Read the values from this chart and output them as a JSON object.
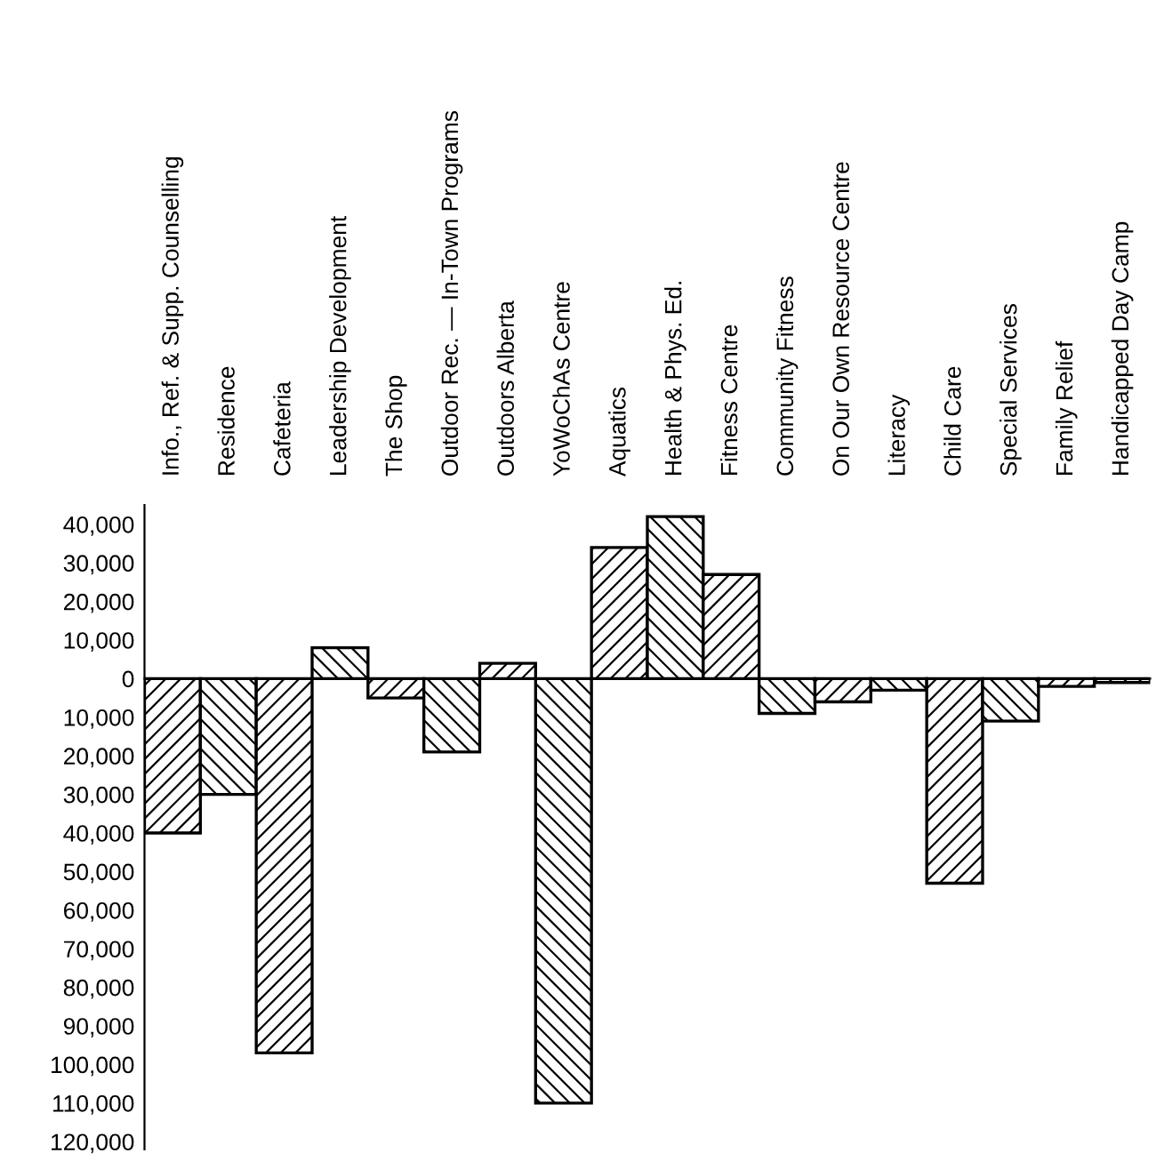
{
  "chart_data": {
    "type": "bar",
    "categories": [
      "Info., Ref. & Supp. Counselling",
      "Residence",
      "Cafeteria",
      "Leadership Development",
      "The Shop",
      "Outdoor Rec. — In-Town Programs",
      "Outdoors Alberta",
      "YoWoChAs Centre",
      "Aquatics",
      "Health & Phys. Ed.",
      "Fitness Centre",
      "Community Fitness",
      "On Our Own Resource Centre",
      "Literacy",
      "Child Care",
      "Special Services",
      "Family Relief",
      "Handicapped Day Camp"
    ],
    "values": [
      -40000,
      -30000,
      -97000,
      8000,
      -5000,
      -19000,
      4000,
      -110000,
      34000,
      42000,
      27000,
      -9000,
      -6000,
      -3000,
      -53000,
      -11000,
      -2000,
      -1000
    ],
    "ylim": [
      -122000,
      45000
    ],
    "yticks": [
      {
        "value": 40000,
        "label": "40,000"
      },
      {
        "value": 30000,
        "label": "30,000"
      },
      {
        "value": 20000,
        "label": "20,000"
      },
      {
        "value": 10000,
        "label": "10,000"
      },
      0,
      {
        "value": -10000,
        "label": "10,000"
      },
      {
        "value": -20000,
        "label": "20,000"
      },
      {
        "value": -30000,
        "label": "30,000"
      },
      {
        "value": -40000,
        "label": "40,000"
      },
      {
        "value": -50000,
        "label": "50,000"
      },
      {
        "value": -60000,
        "label": "60,000"
      },
      {
        "value": -70000,
        "label": "70,000"
      },
      {
        "value": -80000,
        "label": "80,000"
      },
      {
        "value": -90000,
        "label": "90,000"
      },
      {
        "value": -100000,
        "label": "100,000"
      },
      {
        "value": -110000,
        "label": "110,000"
      },
      {
        "value": -120000,
        "label": "120,000"
      }
    ],
    "legend": false
  }
}
